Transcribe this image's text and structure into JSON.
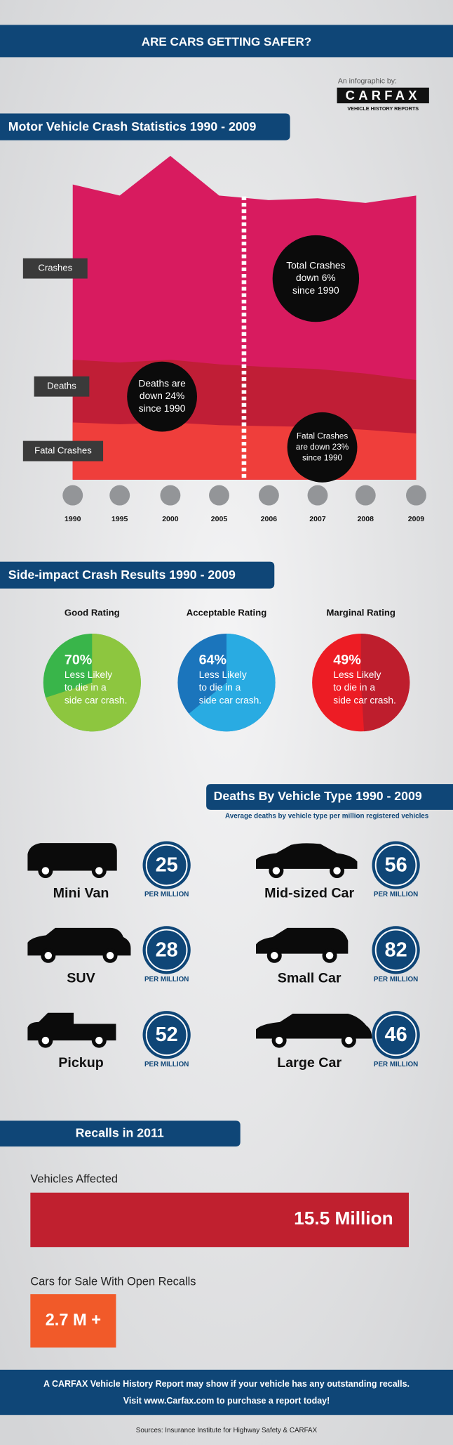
{
  "header": {
    "title": "ARE CARS GETTING SAFER?",
    "credit": "An infographic by:",
    "logo": "CARFAX",
    "logo_tagline": "VEHICLE HISTORY REPORTS"
  },
  "crash_stats": {
    "title": "Motor Vehicle Crash Statistics 1990 - 2009",
    "labels": [
      "Crashes",
      "Deaths",
      "Fatal Crashes"
    ],
    "callouts": [
      [
        "Total Crashes",
        "down 6%",
        "since 1990"
      ],
      [
        "Deaths are",
        "down 24%",
        "since 1990"
      ],
      [
        "Fatal Crashes",
        "are down 23%",
        "since 1990"
      ]
    ],
    "years": [
      "1990",
      "1995",
      "2000",
      "2005",
      "2006",
      "2007",
      "2008",
      "2009"
    ]
  },
  "side_impact": {
    "title": "Side-impact Crash Results 1990 - 2009",
    "ratings": [
      {
        "name": "Good Rating",
        "percent": "70%",
        "text": [
          "Less Likely",
          "to die in a",
          "side car crash."
        ]
      },
      {
        "name": "Acceptable Rating",
        "percent": "64%",
        "text": [
          "Less Likely",
          "to die in a",
          "side car crash."
        ]
      },
      {
        "name": "Marginal Rating",
        "percent": "49%",
        "text": [
          "Less Likely",
          "to die in a",
          "side car crash."
        ]
      }
    ]
  },
  "vehicle_deaths": {
    "title": "Deaths By Vehicle Type 1990 - 2009",
    "subtitle": "Average deaths by vehicle type per million registered vehicles",
    "unit": "PER MILLION",
    "vehicles": [
      {
        "name": "Mini Van",
        "value": "25"
      },
      {
        "name": "Mid-sized Car",
        "value": "56"
      },
      {
        "name": "SUV",
        "value": "28"
      },
      {
        "name": "Small Car",
        "value": "82"
      },
      {
        "name": "Pickup",
        "value": "52"
      },
      {
        "name": "Large Car",
        "value": "46"
      }
    ]
  },
  "recalls": {
    "title": "Recalls in 2011",
    "items": [
      {
        "label": "Vehicles Affected",
        "value": "15.5 Million"
      },
      {
        "label": "Cars for Sale With Open Recalls",
        "value": "2.7 M +"
      }
    ]
  },
  "footer": {
    "lines": [
      "A CARFAX Vehicle History Report may show if your vehicle has any outstanding recalls.",
      "Visit www.Carfax.com to purchase a report today!"
    ],
    "sources": "Sources: Insurance Institute for Highway Safety & CARFAX"
  }
}
